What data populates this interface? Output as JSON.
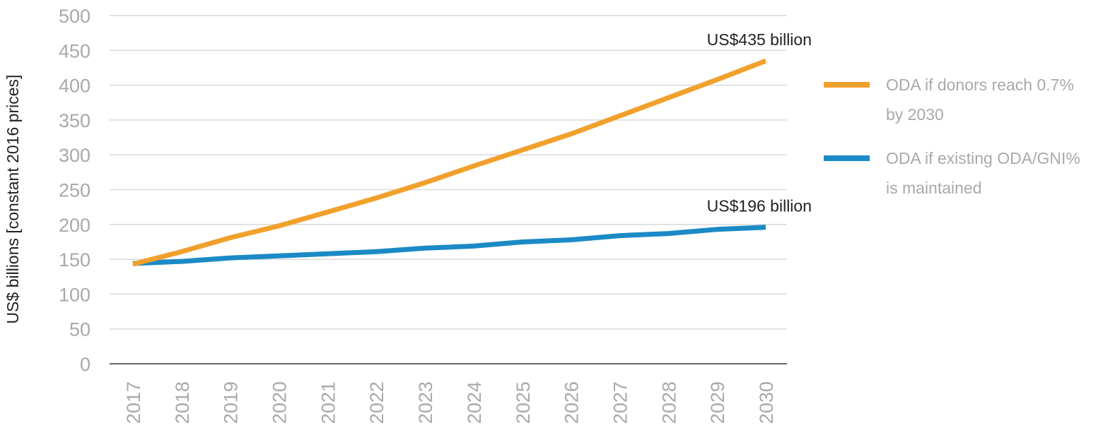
{
  "chart_data": {
    "type": "line",
    "title": "",
    "ylabel": "US$ billions [constant 2016 prices]",
    "xlabel": "",
    "ylim": [
      0,
      500
    ],
    "yticks": [
      "0",
      "50",
      "100",
      "150",
      "200",
      "250",
      "300",
      "350",
      "400",
      "450",
      "500"
    ],
    "categories": [
      "2017",
      "2018",
      "2019",
      "2020",
      "2021",
      "2022",
      "2023",
      "2024",
      "2025",
      "2026",
      "2027",
      "2028",
      "2029",
      "2030"
    ],
    "series": [
      {
        "name": "ODA if donors reach 0.7% by 2030",
        "legend_lines": [
          "ODA if donors reach 0.7%",
          "by 2030"
        ],
        "color": "#f2a02c",
        "values": [
          143,
          161,
          181,
          198,
          218,
          238,
          260,
          284,
          307,
          330,
          356,
          382,
          408,
          435
        ],
        "end_label": "US$435 billion"
      },
      {
        "name": "ODA if existing ODA/GNI% is maintained",
        "legend_lines": [
          "ODA if existing ODA/GNI%",
          "is maintained"
        ],
        "color": "#1b8ac6",
        "values": [
          144,
          147,
          152,
          155,
          158,
          161,
          166,
          169,
          175,
          178,
          184,
          187,
          193,
          196
        ],
        "end_label": "US$196 billion"
      }
    ],
    "grid": true,
    "legend_position": "right"
  }
}
